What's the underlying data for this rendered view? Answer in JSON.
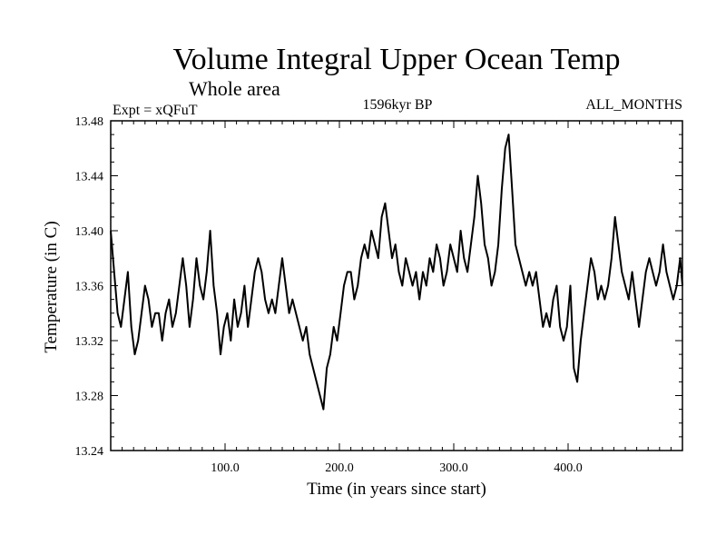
{
  "chart_data": {
    "type": "line",
    "title": "Volume Integral Upper Ocean Temp",
    "subtitle": "Whole area",
    "header_left": "Expt = xQFuT",
    "header_center": "1596kyr BP",
    "header_right": "ALL_MONTHS",
    "xlabel": "Time (in years since start)",
    "ylabel": "Temperature (in C)",
    "xlim": [
      0,
      500
    ],
    "ylim": [
      13.24,
      13.48
    ],
    "xticks": [
      100,
      200,
      300,
      400
    ],
    "xtick_labels": [
      "100.0",
      "200.0",
      "300.0",
      "400.0"
    ],
    "yticks": [
      13.24,
      13.28,
      13.32,
      13.36,
      13.4,
      13.44,
      13.48
    ],
    "ytick_labels": [
      "13.24",
      "13.28",
      "13.32",
      "13.36",
      "13.40",
      "13.44",
      "13.48"
    ],
    "series": [
      {
        "name": "Volume Integral Upper Ocean Temp",
        "x": [
          0,
          3,
          6,
          9,
          12,
          15,
          18,
          21,
          24,
          27,
          30,
          33,
          36,
          39,
          42,
          45,
          48,
          51,
          54,
          57,
          60,
          63,
          66,
          69,
          72,
          75,
          78,
          81,
          84,
          87,
          90,
          93,
          96,
          99,
          102,
          105,
          108,
          111,
          114,
          117,
          120,
          123,
          126,
          129,
          132,
          135,
          138,
          141,
          144,
          147,
          150,
          153,
          156,
          159,
          162,
          165,
          168,
          171,
          174,
          177,
          180,
          183,
          186,
          189,
          192,
          195,
          198,
          201,
          204,
          207,
          210,
          213,
          216,
          219,
          222,
          225,
          228,
          231,
          234,
          237,
          240,
          243,
          246,
          249,
          252,
          255,
          258,
          261,
          264,
          267,
          270,
          273,
          276,
          279,
          282,
          285,
          288,
          291,
          294,
          297,
          300,
          303,
          306,
          309,
          312,
          315,
          318,
          321,
          324,
          327,
          330,
          333,
          336,
          339,
          342,
          345,
          348,
          351,
          354,
          357,
          360,
          363,
          366,
          369,
          372,
          375,
          378,
          381,
          384,
          387,
          390,
          393,
          396,
          399,
          402,
          405,
          408,
          411,
          414,
          417,
          420,
          423,
          426,
          429,
          432,
          435,
          438,
          441,
          444,
          447,
          450,
          453,
          456,
          459,
          462,
          465,
          468,
          471,
          474,
          477,
          480,
          483,
          486,
          489,
          492,
          495,
          498,
          500
        ],
        "values": [
          13.4,
          13.37,
          13.34,
          13.33,
          13.35,
          13.37,
          13.33,
          13.31,
          13.32,
          13.34,
          13.36,
          13.35,
          13.33,
          13.34,
          13.34,
          13.32,
          13.34,
          13.35,
          13.33,
          13.34,
          13.36,
          13.38,
          13.36,
          13.33,
          13.35,
          13.38,
          13.36,
          13.35,
          13.37,
          13.4,
          13.36,
          13.34,
          13.31,
          13.33,
          13.34,
          13.32,
          13.35,
          13.33,
          13.34,
          13.36,
          13.33,
          13.35,
          13.37,
          13.38,
          13.37,
          13.35,
          13.34,
          13.35,
          13.34,
          13.36,
          13.38,
          13.36,
          13.34,
          13.35,
          13.34,
          13.33,
          13.32,
          13.33,
          13.31,
          13.3,
          13.29,
          13.28,
          13.27,
          13.3,
          13.31,
          13.33,
          13.32,
          13.34,
          13.36,
          13.37,
          13.37,
          13.35,
          13.36,
          13.38,
          13.39,
          13.38,
          13.4,
          13.39,
          13.38,
          13.41,
          13.42,
          13.4,
          13.38,
          13.39,
          13.37,
          13.36,
          13.38,
          13.37,
          13.36,
          13.37,
          13.35,
          13.37,
          13.36,
          13.38,
          13.37,
          13.39,
          13.38,
          13.36,
          13.37,
          13.39,
          13.38,
          13.37,
          13.4,
          13.38,
          13.37,
          13.39,
          13.41,
          13.44,
          13.42,
          13.39,
          13.38,
          13.36,
          13.37,
          13.39,
          13.43,
          13.46,
          13.47,
          13.43,
          13.39,
          13.38,
          13.37,
          13.36,
          13.37,
          13.36,
          13.37,
          13.35,
          13.33,
          13.34,
          13.33,
          13.35,
          13.36,
          13.33,
          13.32,
          13.33,
          13.36,
          13.3,
          13.29,
          13.32,
          13.34,
          13.36,
          13.38,
          13.37,
          13.35,
          13.36,
          13.35,
          13.36,
          13.38,
          13.41,
          13.39,
          13.37,
          13.36,
          13.35,
          13.37,
          13.35,
          13.33,
          13.35,
          13.37,
          13.38,
          13.37,
          13.36,
          13.37,
          13.39,
          13.37,
          13.36,
          13.35,
          13.36,
          13.38,
          13.36
        ]
      }
    ]
  }
}
